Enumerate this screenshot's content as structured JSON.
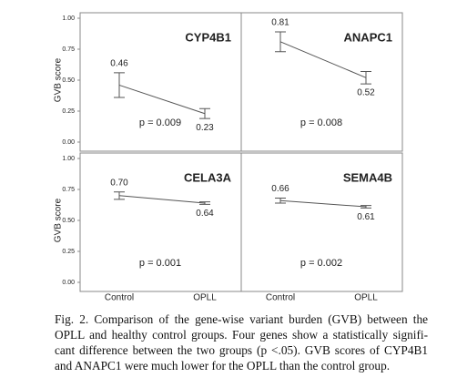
{
  "chart_data": [
    {
      "type": "line",
      "title": "CYP4B1",
      "ylabel": "GVB score",
      "annotation": "p = 0.009",
      "series": [
        {
          "values": [
            0.46,
            0.23
          ],
          "errors": [
            0.1,
            0.04
          ],
          "value_labels": [
            "0.46",
            "0.23"
          ],
          "color": "#555555"
        }
      ],
      "ylim": [
        0,
        1
      ],
      "yticks": [
        {
          "value": 0,
          "label": "0.00"
        },
        {
          "value": 0.25,
          "label": "0.25"
        },
        {
          "value": 0.5,
          "label": "0.50"
        },
        {
          "value": 0.75,
          "label": "0.75"
        },
        {
          "value": 1,
          "label": "1.00"
        }
      ]
    },
    {
      "type": "line",
      "title": "ANAPC1",
      "annotation": "p = 0.008",
      "series": [
        {
          "values": [
            0.81,
            0.52
          ],
          "errors": [
            0.08,
            0.05
          ],
          "value_labels": [
            "0.81",
            "0.52"
          ],
          "color": "#555555"
        }
      ],
      "ylim": [
        0,
        1
      ]
    },
    {
      "type": "line",
      "title": "CELA3A",
      "ylabel": "GVB score",
      "annotation": "p = 0.001",
      "categories": [
        "Control",
        "OPLL"
      ],
      "series": [
        {
          "values": [
            0.7,
            0.64
          ],
          "errors": [
            0.03,
            0.01
          ],
          "value_labels": [
            "0.70",
            "0.64"
          ],
          "color": "#555555"
        }
      ],
      "ylim": [
        0,
        1
      ],
      "yticks": [
        {
          "value": 0,
          "label": "0.00"
        },
        {
          "value": 0.25,
          "label": "0.25"
        },
        {
          "value": 0.5,
          "label": "0.50"
        },
        {
          "value": 0.75,
          "label": "0.75"
        },
        {
          "value": 1,
          "label": "1.00"
        }
      ]
    },
    {
      "type": "line",
      "title": "SEMA4B",
      "annotation": "p = 0.002",
      "categories": [
        "Control",
        "OPLL"
      ],
      "series": [
        {
          "values": [
            0.66,
            0.61
          ],
          "errors": [
            0.02,
            0.01
          ],
          "value_labels": [
            "0.66",
            "0.61"
          ],
          "color": "#555555"
        }
      ],
      "ylim": [
        0,
        1
      ]
    }
  ],
  "caption": {
    "lines": [
      "Fig. 2. Comparison of the gene-wise variant burden (GVB) between the",
      "OPLL and healthy control groups. Four genes show a statistically signifi-",
      "cant difference between the two groups (p <.05). GVB scores of CYP4B1",
      "and ANAPC1 were much lower for the OPLL than the control group."
    ]
  }
}
